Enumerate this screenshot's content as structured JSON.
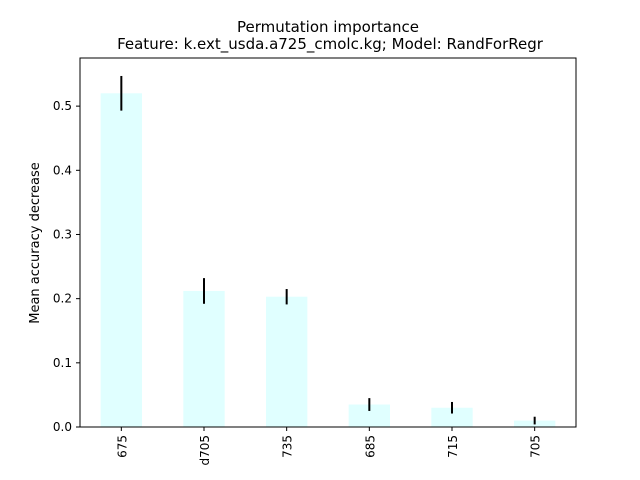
{
  "chart_data": {
    "type": "bar",
    "title": "Permutation importance",
    "subtitle": "Feature: k.ext_usda.a725_cmolc.kg; Model: RandForRegr",
    "xlabel": "",
    "ylabel": "Mean accuracy decrease",
    "categories": [
      "675",
      "d705",
      "735",
      "685",
      "715",
      "705"
    ],
    "values": [
      0.52,
      0.212,
      0.203,
      0.035,
      0.03,
      0.01
    ],
    "errors": [
      0.027,
      0.02,
      0.012,
      0.01,
      0.009,
      0.006
    ],
    "ylim": [
      0,
      0.575
    ],
    "yticks": [
      0.0,
      0.1,
      0.2,
      0.3,
      0.4,
      0.5
    ],
    "ytick_labels": [
      "0.0",
      "0.1",
      "0.2",
      "0.3",
      "0.4",
      "0.5"
    ],
    "bar_color": "#e0ffff",
    "error_color": "#000000",
    "grid": false,
    "legend": false
  }
}
